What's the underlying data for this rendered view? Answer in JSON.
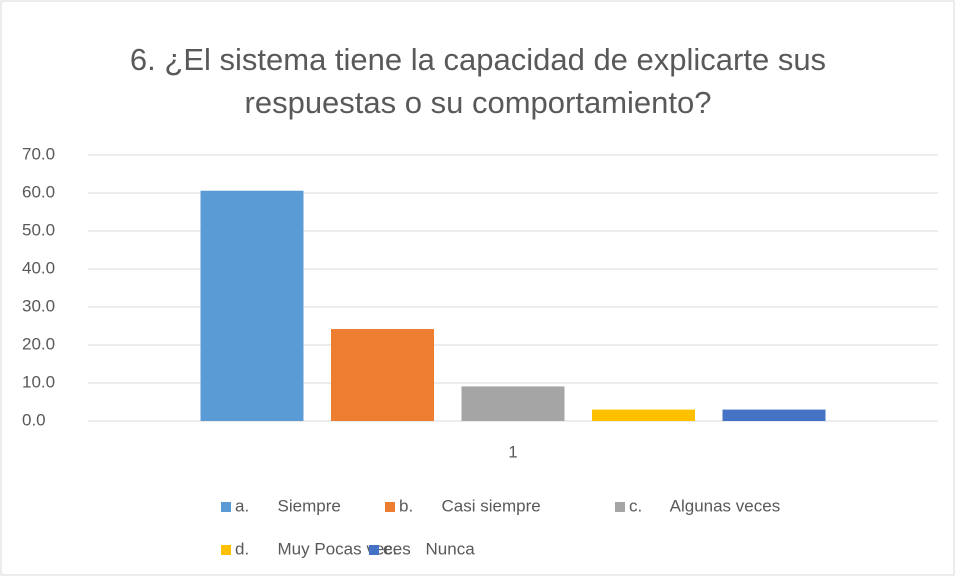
{
  "chart_data": {
    "type": "bar",
    "title": "6. ¿El sistema tiene la capacidad de explicarte sus respuestas o su comportamiento?",
    "categories": [
      "1"
    ],
    "series": [
      {
        "name": "a.      Siempre",
        "color": "#5b9bd5",
        "values": [
          60.6
        ]
      },
      {
        "name": "b.      Casi siempre",
        "color": "#ed7d31",
        "values": [
          24.2
        ]
      },
      {
        "name": "c.      Algunas veces",
        "color": "#a5a5a5",
        "values": [
          9.1
        ]
      },
      {
        "name": "d.      Muy Pocas veces",
        "color": "#ffc000",
        "values": [
          3.0
        ]
      },
      {
        "name": "e.      Nunca",
        "color": "#4472c4",
        "values": [
          3.0
        ]
      }
    ],
    "ylim": [
      0,
      70
    ],
    "yticks": [
      {
        "value": 0,
        "label": "0.0"
      },
      {
        "value": 10,
        "label": "10.0"
      },
      {
        "value": 20,
        "label": "20.0"
      },
      {
        "value": 30,
        "label": "30.0"
      },
      {
        "value": 40,
        "label": "40.0"
      },
      {
        "value": 50,
        "label": "50.0"
      },
      {
        "value": 60,
        "label": "60.0"
      },
      {
        "value": 70,
        "label": "70.0"
      }
    ],
    "grid": true,
    "legend": "bottom"
  }
}
